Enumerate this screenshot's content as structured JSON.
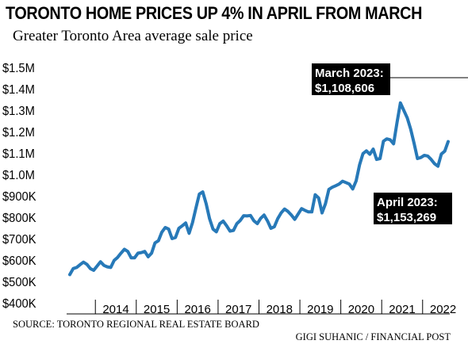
{
  "header": {
    "title": "TORONTO HOME PRICES UP 4% IN APRIL FROM MARCH",
    "subtitle": "Greater Toronto Area average sale price"
  },
  "footer": {
    "source": "SOURCE: TORONTO REGIONAL REAL ESTATE BOARD",
    "credit": "GIGI SUHANIC / FINANCIAL POST"
  },
  "colors": {
    "line": "#2779b8",
    "callout_bg": "#000000",
    "callout_text": "#ffffff"
  },
  "chart_data": {
    "type": "line",
    "title": "TORONTO HOME PRICES UP 4% IN APRIL FROM MARCH",
    "subtitle": "Greater Toronto Area average sale price",
    "xlabel": "",
    "ylabel": "",
    "ylim": [
      400000,
      1500000
    ],
    "grid": false,
    "y_ticks": [
      {
        "value": 400000,
        "label": "$400K"
      },
      {
        "value": 500000,
        "label": "$500K"
      },
      {
        "value": 600000,
        "label": "$600K"
      },
      {
        "value": 700000,
        "label": "$700K"
      },
      {
        "value": 800000,
        "label": "$800K"
      },
      {
        "value": 900000,
        "label": "$900K"
      },
      {
        "value": 1000000,
        "label": "$1.0M"
      },
      {
        "value": 1100000,
        "label": "$1.1M"
      },
      {
        "value": 1200000,
        "label": "$1.2M"
      },
      {
        "value": 1300000,
        "label": "$1.3M"
      },
      {
        "value": 1400000,
        "label": "$1.4M"
      },
      {
        "value": 1500000,
        "label": "$1.5M"
      }
    ],
    "x_ticks": [
      "2014",
      "2015",
      "2016",
      "2017",
      "2018",
      "2019",
      "2020",
      "2021",
      "2022"
    ],
    "x_start": "2013-05",
    "series": [
      {
        "values": [
          532000,
          560000,
          565000,
          578000,
          590000,
          580000,
          560000,
          552000,
          572000,
          592000,
          575000,
          568000,
          565000,
          598000,
          612000,
          632000,
          650000,
          640000,
          610000,
          610000,
          632000,
          635000,
          640000,
          615000,
          632000,
          680000,
          690000,
          730000,
          752000,
          745000,
          700000,
          705000,
          748000,
          760000,
          773000,
          725000,
          775000,
          843000,
          908000,
          918000,
          863000,
          793000,
          745000,
          732000,
          770000,
          782000,
          760000,
          735000,
          738000,
          770000,
          785000,
          807000,
          806000,
          808000,
          783000,
          770000,
          795000,
          810000,
          783000,
          748000,
          755000,
          793000,
          820000,
          838000,
          827000,
          810000,
          790000,
          815000,
          840000,
          832000,
          825000,
          825000,
          905000,
          890000,
          820000,
          863000,
          930000,
          940000,
          947000,
          955000,
          968000,
          962000,
          955000,
          932000,
          970000,
          1045000,
          1097000,
          1110000,
          1094000,
          1118000,
          1070000,
          1074000,
          1155000,
          1166000,
          1162000,
          1143000,
          1242000,
          1334000,
          1299000,
          1264000,
          1212000,
          1146000,
          1074000,
          1079000,
          1089000,
          1086000,
          1070000,
          1050000,
          1038000,
          1095000,
          1108606,
          1153269
        ]
      }
    ],
    "annotations": [
      {
        "label": "March 2023:",
        "value_text": "$1,108,606",
        "date": "2023-03"
      },
      {
        "label": "April 2023:",
        "value_text": "$1,153,269",
        "date": "2023-04"
      }
    ]
  }
}
